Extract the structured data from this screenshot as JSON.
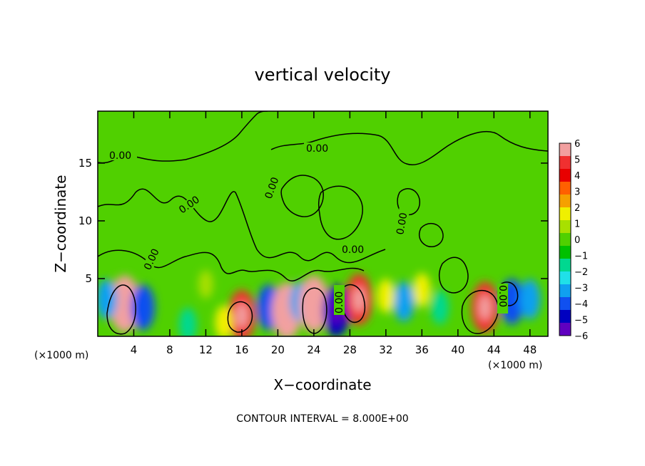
{
  "chart_data": {
    "type": "heatmap",
    "title": "vertical velocity",
    "xlabel": "X−coordinate",
    "ylabel": "Z−coordinate",
    "x_unit": "(×1000 m)",
    "y_unit": "(×1000 m)",
    "footer": "CONTOUR INTERVAL = 8.000E+00",
    "xlim": [
      0,
      50
    ],
    "ylim": [
      0,
      19.5
    ],
    "x_ticks": [
      4,
      8,
      12,
      16,
      20,
      24,
      28,
      32,
      36,
      40,
      44,
      48
    ],
    "y_ticks": [
      5,
      10,
      15
    ],
    "colorbar": {
      "ticks": [
        6,
        5,
        4,
        3,
        2,
        1,
        0,
        -1,
        -2,
        -3,
        -4,
        -5,
        -6
      ],
      "colors": [
        "#f2a0a0",
        "#f03030",
        "#e80000",
        "#ff6000",
        "#f5a000",
        "#f0f000",
        "#a8e000",
        "#50d000",
        "#00c000",
        "#00d890",
        "#20e0e8",
        "#10a0f0",
        "#1050f0",
        "#0000c0",
        "#6000c0"
      ]
    },
    "contour_labels": [
      "0.00",
      "0.00",
      "0.00",
      "0.00",
      "0.00",
      "0.00",
      "0.00",
      "0.00",
      "0.00",
      "0.00"
    ],
    "cells": [
      {
        "x": 3,
        "z": 2.8,
        "v": 6
      },
      {
        "x": 5,
        "z": 2.5,
        "v": -4
      },
      {
        "x": 1,
        "z": 3.2,
        "v": -3
      },
      {
        "x": 16,
        "z": 1.8,
        "v": 5
      },
      {
        "x": 19,
        "z": 2.5,
        "v": -4
      },
      {
        "x": 21,
        "z": 2.2,
        "v": 6
      },
      {
        "x": 22.5,
        "z": 3.0,
        "v": -3
      },
      {
        "x": 24,
        "z": 2.8,
        "v": 6
      },
      {
        "x": 26.5,
        "z": 2.2,
        "v": -5
      },
      {
        "x": 29,
        "z": 3.2,
        "v": 5
      },
      {
        "x": 34,
        "z": 3.0,
        "v": -3
      },
      {
        "x": 38,
        "z": 2.5,
        "v": -2
      },
      {
        "x": 43,
        "z": 2.5,
        "v": 5
      },
      {
        "x": 46,
        "z": 3.0,
        "v": -4
      },
      {
        "x": 48,
        "z": 3.2,
        "v": -3
      },
      {
        "x": 10,
        "z": 1.0,
        "v": -2
      },
      {
        "x": 14,
        "z": 1.2,
        "v": 2
      },
      {
        "x": 36,
        "z": 4.0,
        "v": 2
      },
      {
        "x": 12,
        "z": 4.5,
        "v": 1
      },
      {
        "x": 32,
        "z": 3.5,
        "v": 2
      }
    ]
  }
}
